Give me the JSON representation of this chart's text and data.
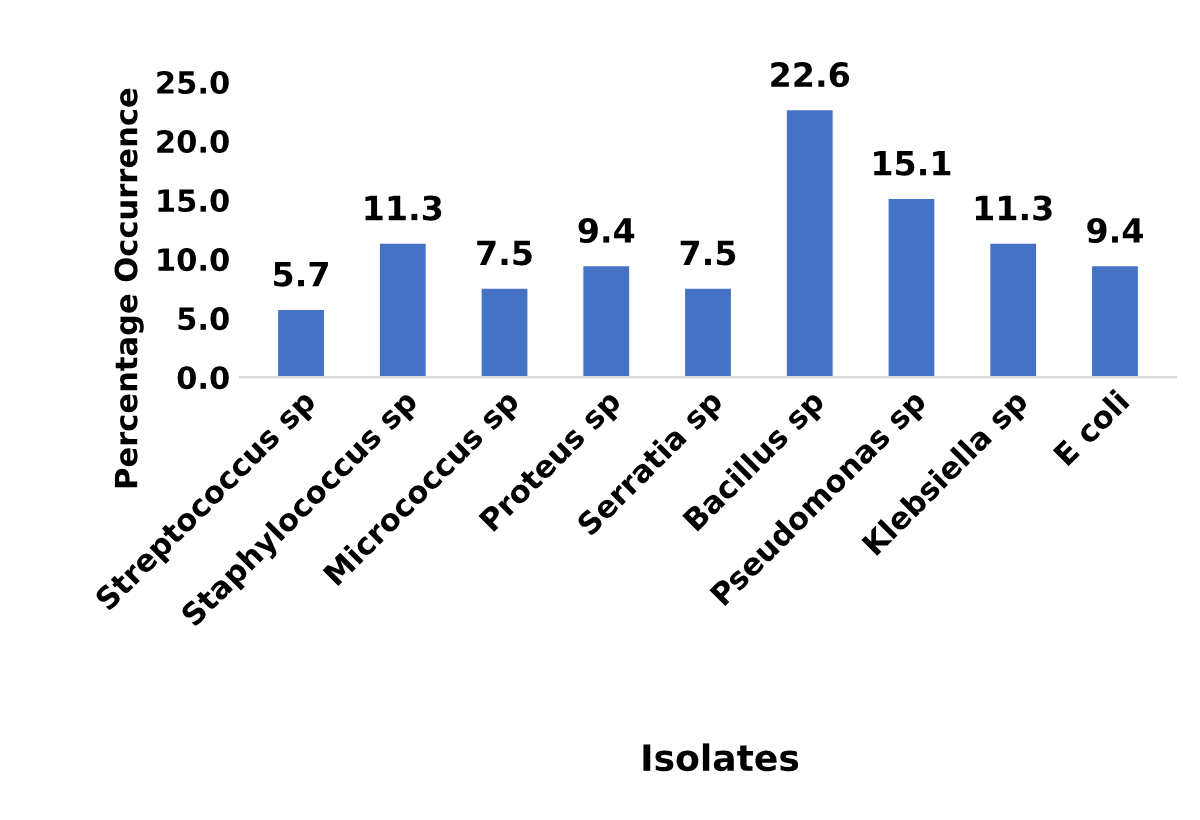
{
  "chart_data": {
    "type": "bar",
    "xlabel": "Isolates",
    "ylabel": "Percentage Occurrence",
    "categories": [
      "Streptococcus sp",
      "Staphylococcus sp",
      "Micrococcus sp",
      "Proteus sp",
      "Serratia sp",
      "Bacillus sp",
      "Pseudomonas sp",
      "Klebsiella sp",
      "E coli"
    ],
    "values": [
      5.7,
      11.3,
      7.5,
      9.4,
      7.5,
      22.6,
      15.1,
      11.3,
      9.4
    ],
    "value_labels": [
      "5.7",
      "11.3",
      "7.5",
      "9.4",
      "7.5",
      "22.6",
      "15.1",
      "11.3",
      "9.4"
    ],
    "color": "#4472c4",
    "ylim": [
      0,
      25
    ],
    "yticks": [
      {
        "value": 0,
        "label": "0.0"
      },
      {
        "value": 5,
        "label": "5.0"
      },
      {
        "value": 10,
        "label": "10.0"
      },
      {
        "value": 15,
        "label": "15.0"
      },
      {
        "value": 20,
        "label": "20.0"
      },
      {
        "value": 25,
        "label": "25.0"
      }
    ],
    "grid": false
  }
}
